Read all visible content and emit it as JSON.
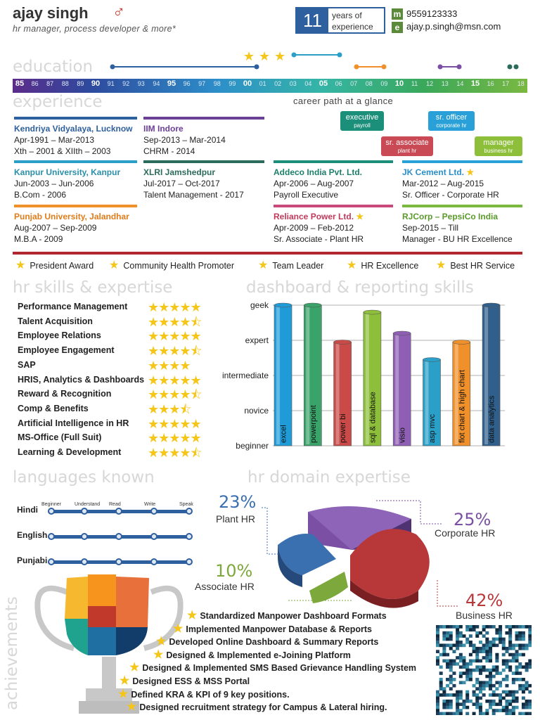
{
  "header": {
    "name": "ajay singh",
    "tagline": "hr manager,  process developer & more*",
    "years": "11",
    "years_label_1": "years of",
    "years_label_2": "experience",
    "phone_badge": "m",
    "phone": "9559123333",
    "email_badge": "e",
    "email": "ajay.p.singh@msn.com"
  },
  "sections": {
    "education": "education",
    "experience": "experience",
    "career_path": "career path at a glance",
    "skills": "hr skills & expertise",
    "dashboard": "dashboard & reporting skills",
    "languages": "languages known",
    "domain": "hr domain expertise",
    "achievements": "achievements"
  },
  "timeline": [
    "85",
    "86",
    "87",
    "88",
    "89",
    "90",
    "91",
    "92",
    "93",
    "94",
    "95",
    "96",
    "97",
    "98",
    "99",
    "00",
    "01",
    "02",
    "03",
    "04",
    "05",
    "06",
    "07",
    "08",
    "09",
    "10",
    "11",
    "12",
    "13",
    "14",
    "15",
    "16",
    "17",
    "18"
  ],
  "roles": [
    {
      "title": "executive",
      "sub": "payroll"
    },
    {
      "title": "sr. officer",
      "sub": "corporate hr"
    },
    {
      "title": "sr. associate",
      "sub": "plant hr"
    },
    {
      "title": "manager",
      "sub": "business hr"
    }
  ],
  "education": [
    {
      "title": "Kendriya Vidyalaya, Lucknow",
      "l1": "Apr-1991 – Mar-2013",
      "l2": "Xth – 2001 & XIIth – 2003"
    },
    {
      "title": "IIM Indore",
      "l1": "Sep-2013 – Mar-2014",
      "l2": "CHRM - 2014"
    },
    {
      "title": "Kanpur University, Kanpur",
      "l1": "Jun-2003 – Jun-2006",
      "l2": "B.Com - 2006"
    },
    {
      "title": "XLRI Jamshedpur",
      "l1": "Jul-2017 – Oct-2017",
      "l2": "Talent Management - 2017"
    },
    {
      "title": "Punjab University, Jalandhar",
      "l1": "Aug-2007 – Sep-2009",
      "l2": "M.B.A - 2009"
    }
  ],
  "experience": [
    {
      "title": "Addeco India Pvt. Ltd.",
      "l1": "Apr-2006 – Aug-2007",
      "l2": "Payroll Executive"
    },
    {
      "title": "JK Cement Ltd.",
      "l1": "Mar-2012 – Aug-2015",
      "l2": "Sr. Officer - Corporate HR"
    },
    {
      "title": "Reliance Power Ltd.",
      "l1": "Apr-2009 – Feb-2012",
      "l2": "Sr. Associate -  Plant HR"
    },
    {
      "title": "RJCorp – PepsiCo India",
      "l1": "Sep-2015 – Till",
      "l2": "Manager - BU HR Excellence"
    }
  ],
  "awards": [
    "President Award",
    "Community Health Promoter",
    "Team Leader",
    "HR Excellence",
    "Best HR Service"
  ],
  "skills": [
    {
      "name": "Performance Management",
      "rating": 5
    },
    {
      "name": "Talent Acquisition",
      "rating": 4.5
    },
    {
      "name": "Employee Relations",
      "rating": 5
    },
    {
      "name": "Employee Engagement",
      "rating": 4.5
    },
    {
      "name": "SAP",
      "rating": 4
    },
    {
      "name": "HRIS, Analytics & Dashboards",
      "rating": 5
    },
    {
      "name": "Reward & Recognition",
      "rating": 4.5
    },
    {
      "name": "Comp & Benefits",
      "rating": 3.5
    },
    {
      "name": "Artificial Intelligence in HR",
      "rating": 5
    },
    {
      "name": "MS-Office (Full Suit)",
      "rating": 5
    },
    {
      "name": "Learning & Development",
      "rating": 4.5
    }
  ],
  "chart_data": [
    {
      "type": "bar",
      "title": "",
      "ylabel": "",
      "categories": [
        "excel",
        "powerpoint",
        "power bi",
        "sql & database",
        "visio",
        "asp mvc",
        "flot chart & high chart",
        "data analytics"
      ],
      "y_levels": [
        "beginner",
        "novice",
        "intermediate",
        "expert",
        "geek"
      ],
      "values": [
        4,
        4,
        2.95,
        3.8,
        3.2,
        2.45,
        2.95,
        4
      ],
      "ylim": [
        0,
        4
      ],
      "colors": [
        "#1f9bd7",
        "#3aa36a",
        "#c94a47",
        "#8dbf3a",
        "#8e5fb5",
        "#2aa0c9",
        "#f0902a",
        "#2f5f8a"
      ]
    },
    {
      "type": "pie",
      "title": "",
      "categories": [
        "Corporate HR",
        "Business HR",
        "Associate HR",
        "Plant HR"
      ],
      "values": [
        25,
        42,
        10,
        23
      ],
      "labels": [
        "25%",
        "42%",
        "10%",
        "23%"
      ],
      "colors": [
        "#7b4fa3",
        "#b8383a",
        "#7da83c",
        "#3a6fb0"
      ]
    }
  ],
  "languages": {
    "levels": [
      "Beginner",
      "Understand",
      "Read",
      "Write",
      "Speak"
    ],
    "items": [
      {
        "name": "Hindi",
        "level": 5
      },
      {
        "name": "English",
        "level": 5
      },
      {
        "name": "Punjabi",
        "level": 5
      }
    ]
  },
  "achievements": [
    "Standardized Manpower Dashboard Formats",
    "Implemented Manpower Database & Reports",
    "Developed Online Dashboard & Summary Reports",
    "Designed & Implemented e-Joining Platform",
    "Designed & Implemented SMS Based Grievance Handling System",
    "Designed ESS & MSS Portal",
    "Defined KRA & KPI of 9 key positions.",
    "Designed recruitment strategy for Campus & Lateral hiring."
  ]
}
